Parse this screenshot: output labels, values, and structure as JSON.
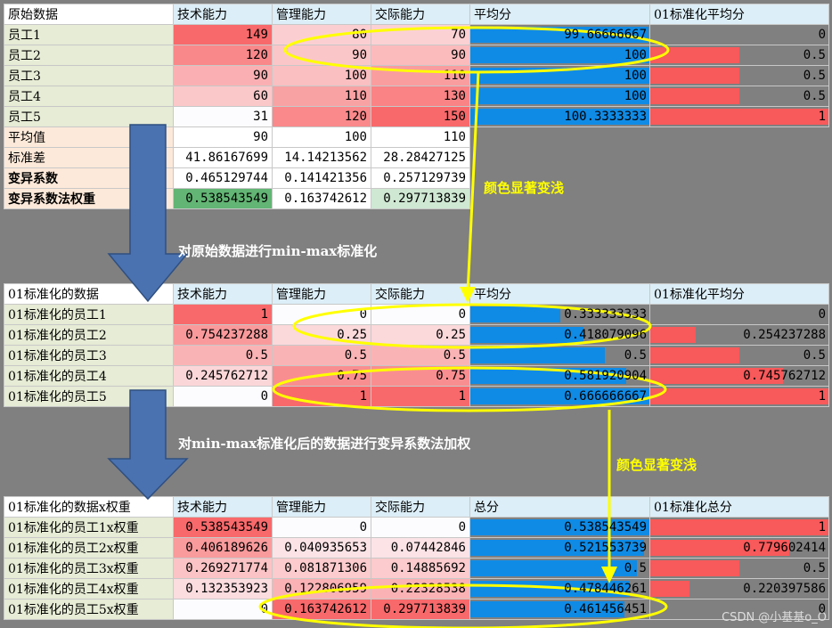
{
  "table1": {
    "headers": [
      "原始数据",
      "技术能力",
      "管理能力",
      "交际能力",
      "平均分",
      "01标准化平均分"
    ],
    "rows": [
      {
        "label": "员工1",
        "v": [
          "149",
          "80",
          "70"
        ],
        "avg": "99.66666667",
        "avg_frac": 0.997,
        "norm": "0",
        "norm_frac": 0
      },
      {
        "label": "员工2",
        "v": [
          "120",
          "90",
          "90"
        ],
        "avg": "100",
        "avg_frac": 1.0,
        "norm": "0.5",
        "norm_frac": 0.5
      },
      {
        "label": "员工3",
        "v": [
          "90",
          "100",
          "110"
        ],
        "avg": "100",
        "avg_frac": 1.0,
        "norm": "0.5",
        "norm_frac": 0.5
      },
      {
        "label": "员工4",
        "v": [
          "60",
          "110",
          "130"
        ],
        "avg": "100",
        "avg_frac": 1.0,
        "norm": "0.5",
        "norm_frac": 0.5
      },
      {
        "label": "员工5",
        "v": [
          "31",
          "120",
          "150"
        ],
        "avg": "100.3333333",
        "avg_frac": 1.0,
        "norm": "1",
        "norm_frac": 1.0
      }
    ],
    "stats": [
      {
        "label": "平均值",
        "v": [
          "90",
          "100",
          "110"
        ]
      },
      {
        "label": "标准差",
        "v": [
          "41.86167699",
          "14.14213562",
          "28.28427125"
        ]
      },
      {
        "label": "变异系数",
        "v": [
          "0.465129744",
          "0.141421356",
          "0.257129739"
        ]
      },
      {
        "label": "变异系数法权重",
        "v": [
          "0.538543549",
          "0.163742612",
          "0.297713839"
        ]
      }
    ]
  },
  "table2": {
    "headers": [
      "01标准化的数据",
      "技术能力",
      "管理能力",
      "交际能力",
      "平均分",
      "01标准化平均分"
    ],
    "rows": [
      {
        "label": "01标准化的员工1",
        "v": [
          "1",
          "0",
          "0"
        ],
        "avg": "0.333333333",
        "avg_frac": 0.5,
        "norm": "0",
        "norm_frac": 0
      },
      {
        "label": "01标准化的员工2",
        "v": [
          "0.754237288",
          "0.25",
          "0.25"
        ],
        "avg": "0.418079096",
        "avg_frac": 0.63,
        "norm": "0.254237288",
        "norm_frac": 0.254
      },
      {
        "label": "01标准化的员工3",
        "v": [
          "0.5",
          "0.5",
          "0.5"
        ],
        "avg": "0.5",
        "avg_frac": 0.75,
        "norm": "0.5",
        "norm_frac": 0.5
      },
      {
        "label": "01标准化的员工4",
        "v": [
          "0.245762712",
          "0.75",
          "0.75"
        ],
        "avg": "0.581920904",
        "avg_frac": 0.87,
        "norm": "0.745762712",
        "norm_frac": 0.746
      },
      {
        "label": "01标准化的员工5",
        "v": [
          "0",
          "1",
          "1"
        ],
        "avg": "0.666666667",
        "avg_frac": 1.0,
        "norm": "1",
        "norm_frac": 1.0
      }
    ]
  },
  "table3": {
    "headers": [
      "01标准化的数据x权重",
      "技术能力",
      "管理能力",
      "交际能力",
      "总分",
      "01标准化总分"
    ],
    "rows": [
      {
        "label": "01标准化的员工1x权重",
        "v": [
          "0.538543549",
          "0",
          "0"
        ],
        "avg": "0.538543549",
        "avg_frac": 1.0,
        "norm": "1",
        "norm_frac": 1.0
      },
      {
        "label": "01标准化的员工2x权重",
        "v": [
          "0.406189626",
          "0.040935653",
          "0.07442846"
        ],
        "avg": "0.521553739",
        "avg_frac": 0.97,
        "norm": "0.779602414",
        "norm_frac": 0.78
      },
      {
        "label": "01标准化的员工3x权重",
        "v": [
          "0.269271774",
          "0.081871306",
          "0.14885692"
        ],
        "avg": "0.5",
        "avg_frac": 0.93,
        "norm": "0.5",
        "norm_frac": 0.5
      },
      {
        "label": "01标准化的员工4x权重",
        "v": [
          "0.132353923",
          "0.122806959",
          "0.22328538"
        ],
        "avg": "0.478446261",
        "avg_frac": 0.89,
        "norm": "0.220397586",
        "norm_frac": 0.22
      },
      {
        "label": "01标准化的员工5x权重",
        "v": [
          "0",
          "0.163742612",
          "0.297713839"
        ],
        "avg": "0.461456451",
        "avg_frac": 0.86,
        "norm": "0",
        "norm_frac": 0
      }
    ]
  },
  "annotations": {
    "step1": "对原始数据进行min-max标准化",
    "step2": "对min-max标准化后的数据进行变异系数法加权",
    "color_note_1": "颜色显著变浅",
    "color_note_2": "颜色显著变浅",
    "watermark": "CSDN @小基基o_O"
  },
  "colors": {
    "bar_blue": "#0f8be6",
    "bar_red": "#f8595a",
    "ellipse": "#ffff00",
    "arrow": "#4a72b0"
  }
}
